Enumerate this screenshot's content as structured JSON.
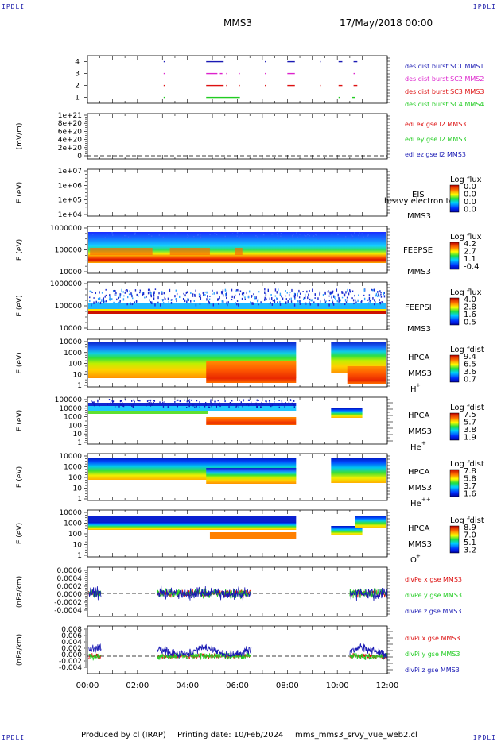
{
  "header": {
    "corner_label": "IPDLI",
    "spacecraft": "MMS3",
    "datetime": "17/May/2018 00:00"
  },
  "footer": {
    "produced_by": "Produced by cl (IRAP)",
    "printing_date": "Printing date: 10/Feb/2024",
    "filename": "mms_mms3_srvy_vue_web2.cl"
  },
  "colors": {
    "red": "#dd1111",
    "magenta": "#dd22cc",
    "green": "#22cc22",
    "blue": "#1a1ab4"
  },
  "chart_data": [
    {
      "type": "scatter",
      "panel": "burst-availability",
      "xlim": [
        "00:00",
        "12:00"
      ],
      "ylim": [
        0.5,
        4.5
      ],
      "yticks": [
        "1",
        "2",
        "3",
        "4"
      ],
      "series": [
        {
          "name": "des dist burst SC1 MMS1",
          "y": 4,
          "color": "#1a1ab4",
          "intervals": [
            [
              3.05,
              3.08
            ],
            [
              4.75,
              5.45
            ],
            [
              7.1,
              7.15
            ],
            [
              8.0,
              8.3
            ],
            [
              9.3,
              9.33
            ],
            [
              10.05,
              10.2
            ],
            [
              10.65,
              10.8
            ]
          ]
        },
        {
          "name": "des dist burst SC2 MMS2",
          "y": 3,
          "color": "#dd22cc",
          "intervals": [
            [
              3.05,
              3.08
            ],
            [
              4.75,
              5.2
            ],
            [
              5.3,
              5.4
            ],
            [
              5.55,
              5.6
            ],
            [
              6.05,
              6.1
            ],
            [
              7.1,
              7.15
            ],
            [
              8.0,
              8.3
            ],
            [
              10.65,
              10.7
            ]
          ]
        },
        {
          "name": "des dist burst SC3 MMS3",
          "y": 2,
          "color": "#dd1111",
          "intervals": [
            [
              3.05,
              3.08
            ],
            [
              4.75,
              5.45
            ],
            [
              5.55,
              5.6
            ],
            [
              6.05,
              6.1
            ],
            [
              7.1,
              7.15
            ],
            [
              8.0,
              8.3
            ],
            [
              9.3,
              9.33
            ],
            [
              10.05,
              10.2
            ],
            [
              10.65,
              10.8
            ]
          ]
        },
        {
          "name": "des dist burst SC4 MMS4",
          "y": 1,
          "color": "#22cc22",
          "intervals": [
            [
              3.05,
              3.08
            ],
            [
              4.75,
              6.1
            ],
            [
              10.05,
              10.1
            ],
            [
              10.6,
              10.7
            ]
          ]
        }
      ]
    },
    {
      "type": "line",
      "panel": "edi-efield",
      "ylabel": "(mV/m)",
      "yticks": [
        "0",
        "2e+20",
        "4e+20",
        "6e+20",
        "8e+20",
        "1e+21"
      ],
      "series": [
        {
          "name": "edi ex gse l2 MMS3",
          "color": "#dd1111"
        },
        {
          "name": "edi ey gse l2 MMS3",
          "color": "#22cc22"
        },
        {
          "name": "edi ez gse l2 MMS3",
          "color": "#1a1ab4"
        }
      ]
    },
    {
      "type": "heatmap",
      "panel": "eis",
      "ylabel": "E (eV)",
      "yticks": [
        "1e+04",
        "1e+05",
        "1e+06",
        "1e+07"
      ],
      "instrument": "EIS",
      "spacecraft": "MMS3",
      "overlay_text": "heavy electron to",
      "colorbar": {
        "title": "Log flux",
        "labels": [
          "0.0",
          "0.0",
          "0.0",
          "0.0"
        ]
      }
    },
    {
      "type": "heatmap",
      "panel": "feeps-electron",
      "ylabel": "E (eV)",
      "yticks": [
        "10000",
        "100000",
        "1000000"
      ],
      "instrument": "FEEPSE",
      "spacecraft": "MMS3",
      "colorbar": {
        "title": "Log flux",
        "labels": [
          "4.2",
          "2.7",
          "1.1",
          "-0.4"
        ]
      }
    },
    {
      "type": "heatmap",
      "panel": "feeps-ion",
      "ylabel": "E (eV)",
      "yticks": [
        "10000",
        "100000",
        "1000000"
      ],
      "instrument": "FEEPSI",
      "spacecraft": "MMS3",
      "colorbar": {
        "title": "Log flux",
        "labels": [
          "4.0",
          "2.8",
          "1.6",
          "0.5"
        ]
      }
    },
    {
      "type": "heatmap",
      "panel": "hpca-hplus",
      "ylabel": "E (eV)",
      "yticks": [
        "1",
        "10",
        "100",
        "1000",
        "10000"
      ],
      "instrument": "HPCA",
      "spacecraft": "MMS3",
      "species": "H",
      "species_sup": "+",
      "colorbar": {
        "title": "Log fdist",
        "labels": [
          "9.4",
          "6.5",
          "3.6",
          "0.7"
        ]
      }
    },
    {
      "type": "heatmap",
      "panel": "hpca-heplus",
      "ylabel": "E (eV)",
      "yticks": [
        "1",
        "10",
        "100",
        "1000",
        "10000",
        "100000"
      ],
      "instrument": "HPCA",
      "spacecraft": "MMS3",
      "species": "He",
      "species_sup": "+",
      "colorbar": {
        "title": "Log fdist",
        "labels": [
          "7.5",
          "5.7",
          "3.8",
          "1.9"
        ]
      }
    },
    {
      "type": "heatmap",
      "panel": "hpca-heplusplus",
      "ylabel": "E (eV)",
      "yticks": [
        "1",
        "10",
        "100",
        "1000",
        "10000"
      ],
      "instrument": "HPCA",
      "spacecraft": "MMS3",
      "species": "He",
      "species_sup": "++",
      "colorbar": {
        "title": "Log fdist",
        "labels": [
          "7.8",
          "5.8",
          "3.7",
          "1.6"
        ]
      }
    },
    {
      "type": "heatmap",
      "panel": "hpca-oplus",
      "ylabel": "E (eV)",
      "yticks": [
        "1",
        "10",
        "100",
        "1000",
        "10000"
      ],
      "instrument": "HPCA",
      "spacecraft": "MMS3",
      "species": "O",
      "species_sup": "+",
      "colorbar": {
        "title": "Log fdist",
        "labels": [
          "8.9",
          "7.0",
          "5.1",
          "3.2"
        ]
      }
    },
    {
      "type": "line",
      "panel": "divpe",
      "ylabel": "(nPa/km)",
      "ylim": [
        -0.005,
        0.0006
      ],
      "yticks": [
        "-0.0004",
        "-0.0002",
        "0.0000",
        "0.0002",
        "0.0004",
        "0.0006"
      ],
      "series": [
        {
          "name": "divPe x gse MMS3",
          "color": "#dd1111"
        },
        {
          "name": "divPe y gse MMS3",
          "color": "#22cc22"
        },
        {
          "name": "divPe z gse MMS3",
          "color": "#1a1ab4"
        }
      ]
    },
    {
      "type": "line",
      "panel": "divpi",
      "ylabel": "(nPa/km)",
      "ylim": [
        -0.004,
        0.008
      ],
      "yticks": [
        "-0.004",
        "-0.002",
        "0.000",
        "0.002",
        "0.004",
        "0.006",
        "0.008"
      ],
      "series": [
        {
          "name": "divPi x gse MMS3",
          "color": "#dd1111"
        },
        {
          "name": "divPi y gse MMS3",
          "color": "#22cc22"
        },
        {
          "name": "divPi z gse MMS3",
          "color": "#1a1ab4"
        }
      ]
    }
  ],
  "xaxis": {
    "xlim": [
      0,
      12
    ],
    "tick_labels": [
      "00:00",
      "02:00",
      "04:00",
      "06:00",
      "08:00",
      "10:00",
      "12:00"
    ]
  }
}
